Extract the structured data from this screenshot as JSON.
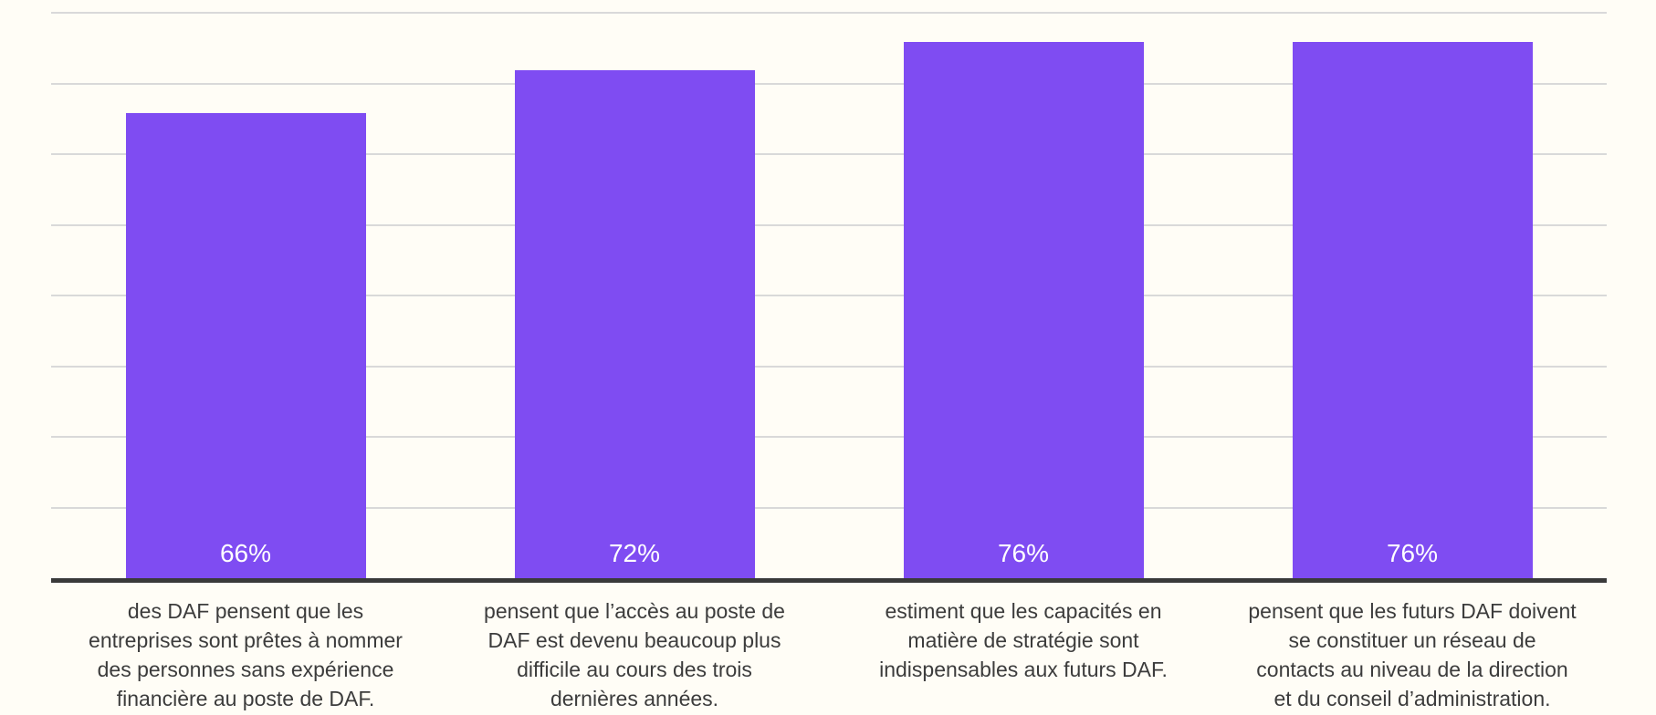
{
  "background_color": "#FFFDF6",
  "chart_data": {
    "type": "bar",
    "title": "",
    "xlabel": "",
    "ylabel": "",
    "categories": [
      "des DAF pensent que les\nentreprises sont prêtes à nommer\ndes personnes sans expérience\nfinancière au poste de DAF.",
      "pensent que l’accès au poste de\nDAF est devenu beaucoup plus\ndifficile au cours des trois\ndernières années.",
      "estiment que les capacités en\nmatière de stratégie sont\nindispensables aux futurs DAF.",
      "pensent que les futurs DAF doivent\nse constituer un réseau de\ncontacts au niveau de la direction\net du conseil d’administration."
    ],
    "values": [
      66,
      72,
      76,
      76
    ],
    "value_labels": [
      "66%",
      "72%",
      "76%",
      "76%"
    ],
    "ylim": [
      0,
      82
    ],
    "gridlines_percent": [
      10,
      20,
      30,
      40,
      50,
      60,
      70,
      80
    ],
    "grid": true,
    "legend": false,
    "bar_color": "#7F4CF2",
    "value_label_color": "#FFFFFF",
    "category_label_color": "#3C3C3C",
    "axis_color": "#3A3A3A",
    "gridline_color": "#D9D9D9"
  }
}
